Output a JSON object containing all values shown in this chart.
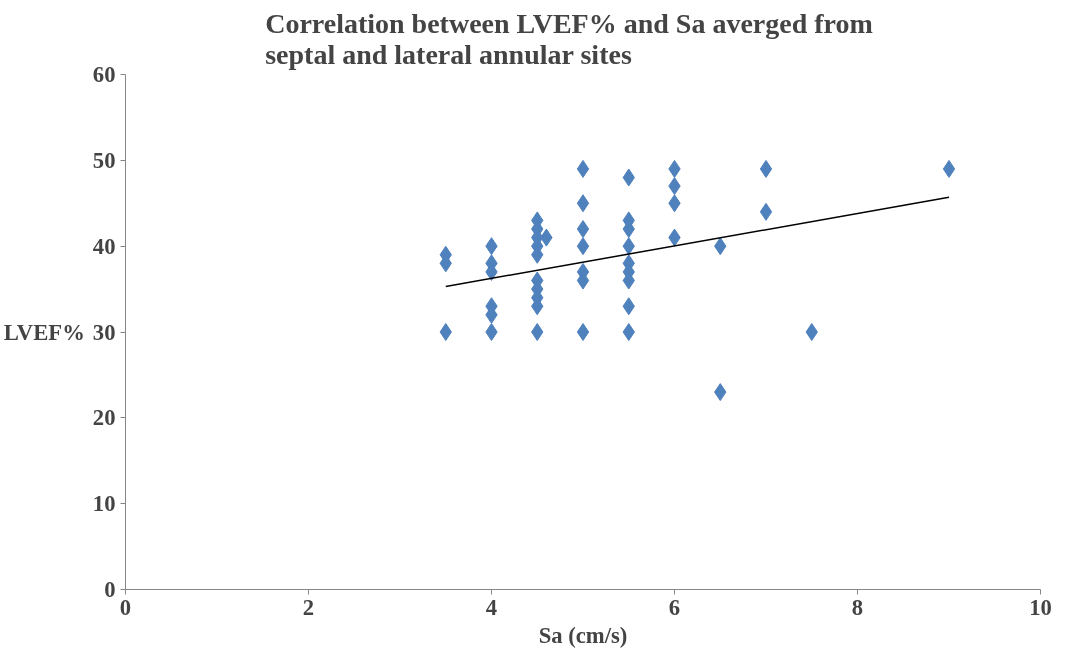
{
  "chart_data": {
    "type": "scatter",
    "title": "Correlation  between LVEF% and   Sa averged  from\nseptal and lateral annular sites",
    "xlabel": "Sa (cm/s)",
    "ylabel": "LVEF%",
    "xlim": [
      0,
      10
    ],
    "xticks": [
      0,
      2,
      4,
      6,
      8,
      10
    ],
    "ylim": [
      0,
      60
    ],
    "yticks": [
      0,
      10,
      20,
      30,
      40,
      50,
      60
    ],
    "grid": false,
    "marker": "diamond",
    "series": [
      {
        "color": "#4f81bd",
        "x": [
          3.5,
          3.5,
          3.5,
          4,
          4,
          4,
          4,
          4,
          4,
          4.5,
          4.5,
          4.5,
          4.5,
          4.5,
          4.5,
          4.5,
          4.5,
          4.5,
          4.5,
          4.6,
          5,
          5,
          5,
          5,
          5,
          5,
          5,
          5.5,
          5.5,
          5.5,
          5.5,
          5.5,
          5.5,
          5.5,
          5.5,
          5.5,
          6,
          6,
          6,
          6,
          6.5,
          6.5,
          7,
          7,
          7.5,
          9
        ],
        "values": [
          39,
          38,
          30,
          40,
          38,
          37,
          33,
          32,
          30,
          43,
          42,
          41,
          40,
          39,
          36,
          35,
          34,
          33,
          30,
          41,
          49,
          45,
          42,
          40,
          37,
          36,
          30,
          48,
          43,
          42,
          40,
          38,
          37,
          36,
          33,
          30,
          49,
          47,
          45,
          41,
          40,
          23,
          49,
          44,
          30,
          49
        ]
      },
      {
        "type": "line",
        "color": "#000000",
        "x": [
          3.5,
          9
        ],
        "values": [
          35.3,
          45.7
        ],
        "marker": "none"
      }
    ]
  }
}
